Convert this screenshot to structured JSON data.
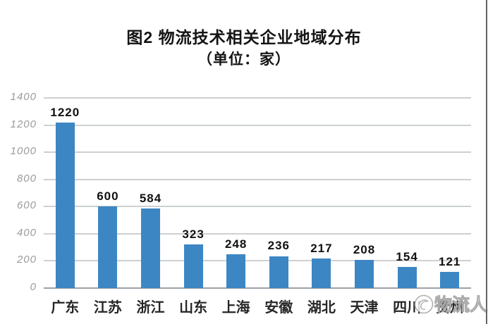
{
  "chart": {
    "title": "图2 物流技术相关企业地域分布",
    "subtitle": "（单位：家）"
  },
  "watermark": {
    "text": "物流人",
    "logo": "circular-logo",
    "covers_last_category_label": true
  },
  "chart_data": {
    "type": "bar",
    "title": "图2 物流技术相关企业地域分布",
    "subtitle": "（单位：家）",
    "categories": [
      "广东",
      "江苏",
      "浙江",
      "山东",
      "上海",
      "安徽",
      "湖北",
      "天津",
      "四川",
      "贵州"
    ],
    "values": [
      1220,
      600,
      584,
      323,
      248,
      236,
      217,
      208,
      154,
      121
    ],
    "xlabel": "",
    "ylabel": "",
    "ylim": [
      0,
      1400
    ],
    "yticks": [
      0,
      200,
      400,
      600,
      800,
      1000,
      1200,
      1400
    ],
    "grid": true,
    "legend": false,
    "data_labels": true,
    "bar_color": "#3d86c4",
    "gridline_color": "#cdd0d2",
    "baseline_color": "#9da2a6",
    "ytick_label_color": "#9b9b9b",
    "value_label_color": "#111111",
    "category_label_color": "#262626"
  }
}
